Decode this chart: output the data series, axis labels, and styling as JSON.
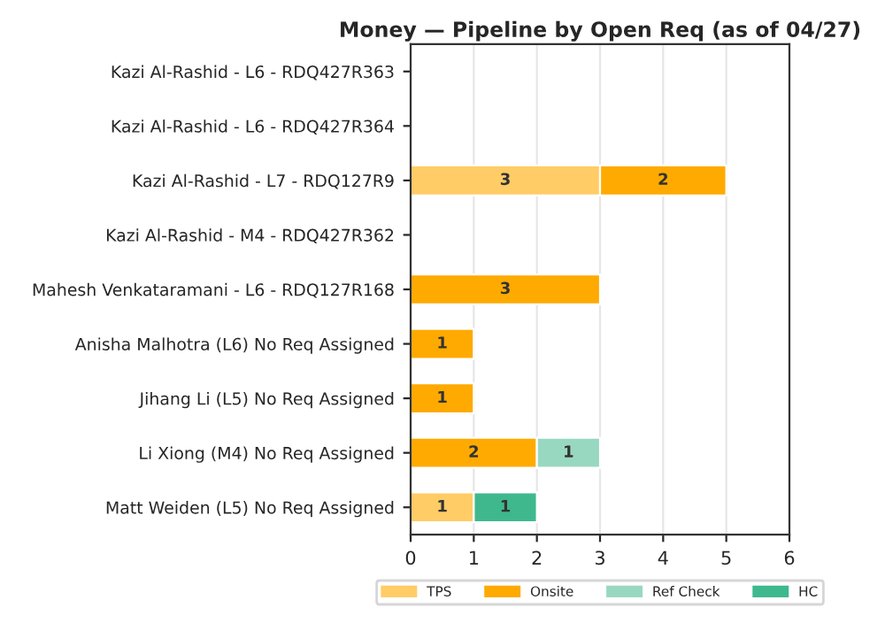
{
  "chart_data": {
    "type": "bar",
    "orientation": "horizontal",
    "stacked": true,
    "title": "Money — Pipeline by Open Req (as of 04/27)",
    "categories": [
      "Kazi Al-Rashid - L6 - RDQ427R363",
      "Kazi Al-Rashid - L6 - RDQ427R364",
      "Kazi Al-Rashid - L7 - RDQ127R9",
      "Kazi Al-Rashid - M4 - RDQ427R362",
      "Mahesh Venkataramani - L6 - RDQ127R168",
      "Anisha Malhotra (L6) No Req Assigned",
      "Jihang Li (L5) No Req Assigned",
      "Li Xiong (M4) No Req Assigned",
      "Matt Weiden (L5) No Req Assigned"
    ],
    "series": [
      {
        "name": "TPS",
        "color": "#ffcc66",
        "values": [
          null,
          null,
          3,
          null,
          null,
          null,
          null,
          null,
          1
        ]
      },
      {
        "name": "Onsite",
        "color": "#ffaa00",
        "values": [
          null,
          null,
          2,
          null,
          3,
          1,
          1,
          2,
          null
        ]
      },
      {
        "name": "Ref Check",
        "color": "#99d8c0",
        "values": [
          null,
          null,
          null,
          null,
          null,
          null,
          null,
          1,
          null
        ]
      },
      {
        "name": "HC",
        "color": "#3fb88e",
        "values": [
          null,
          null,
          null,
          null,
          null,
          null,
          null,
          null,
          1
        ]
      }
    ],
    "xlim": [
      0,
      6
    ],
    "xticks": [
      0,
      1,
      2,
      3,
      4,
      5,
      6
    ],
    "grid": "x",
    "legend": "bottom",
    "data_labels": true
  }
}
